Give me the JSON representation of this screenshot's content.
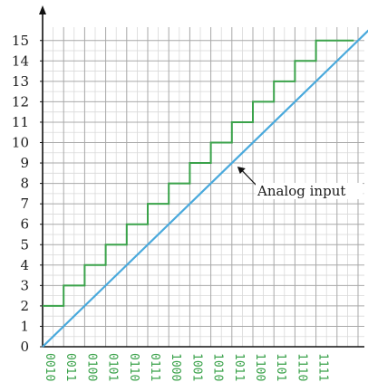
{
  "chart_data": {
    "type": "line",
    "title": "",
    "xlabel": "",
    "ylabel": "",
    "y_ticks": [
      "0",
      "1",
      "2",
      "3",
      "4",
      "5",
      "6",
      "7",
      "8",
      "9",
      "10",
      "11",
      "12",
      "13",
      "14",
      "15"
    ],
    "x_ticks": [
      "0010",
      "0011",
      "0100",
      "0101",
      "0110",
      "0111",
      "1000",
      "1001",
      "1010",
      "1011",
      "1100",
      "1101",
      "1110",
      "1111"
    ],
    "ylim": [
      0,
      15.5
    ],
    "xlim": [
      0,
      15
    ],
    "grid": true,
    "series": [
      {
        "color": "#3aa24a",
        "step_x": [
          0,
          1,
          2,
          3,
          4,
          5,
          6,
          7,
          8,
          9,
          10,
          11,
          12,
          13,
          14
        ],
        "step_y": [
          2,
          3,
          4,
          5,
          6,
          7,
          8,
          9,
          10,
          11,
          12,
          13,
          14,
          15
        ]
      },
      {
        "color": "#49a9dc",
        "x": [
          0,
          15.5
        ],
        "y": [
          0,
          15.5
        ]
      }
    ],
    "annotations": [
      {
        "text": "Analog input",
        "x": 9,
        "y": 9
      }
    ]
  }
}
